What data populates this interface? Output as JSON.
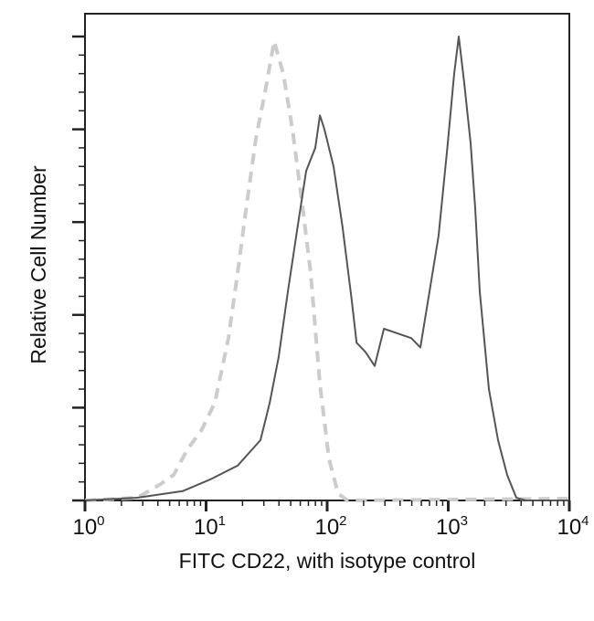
{
  "chart_data": {
    "type": "line",
    "title": "",
    "xlabel": "FITC CD22, with isotype control",
    "ylabel": "Relative Cell Number",
    "x_scale": "log",
    "xlim": [
      1,
      10000
    ],
    "ylim": [
      0,
      100
    ],
    "x_ticks": [
      {
        "base": "10",
        "exp": "0",
        "value": 1
      },
      {
        "base": "10",
        "exp": "1",
        "value": 10
      },
      {
        "base": "10",
        "exp": "2",
        "value": 100
      },
      {
        "base": "10",
        "exp": "3",
        "value": 1000
      },
      {
        "base": "10",
        "exp": "4",
        "value": 10000
      }
    ],
    "y_major_ticks": [
      0,
      20,
      40,
      60,
      80,
      100
    ],
    "grid": false,
    "legend": "none",
    "series": [
      {
        "style": "solid",
        "color": "#555555",
        "x": [
          1,
          2.7,
          6.4,
          10.8,
          18.2,
          28.1,
          33.5,
          39.8,
          47.4,
          56.3,
          67.0,
          79.8,
          87.1,
          94.9,
          113,
          134,
          160,
          175,
          207,
          247,
          294,
          381,
          494,
          589,
          700,
          832,
          991,
          1119,
          1222,
          1356,
          1531,
          1670,
          1820,
          2168,
          2578,
          3069,
          3648,
          4343,
          10000
        ],
        "y": [
          0,
          0.6,
          2,
          4.5,
          7.5,
          13,
          21,
          31,
          45,
          58,
          71,
          76,
          83,
          80,
          72,
          59,
          43,
          34,
          32,
          29,
          37,
          36,
          35,
          33,
          45,
          57,
          77,
          92,
          100,
          90,
          77,
          63,
          45,
          24,
          13,
          5.5,
          0.6,
          0,
          0
        ]
      },
      {
        "style": "dashed",
        "color": "#cccccc",
        "x": [
          1,
          2.7,
          4.2,
          5.4,
          7.0,
          9.1,
          11.8,
          15.3,
          18.2,
          21.7,
          25.8,
          30.7,
          36.5,
          43.4,
          51.7,
          61.5,
          73.1,
          87.1,
          103.5,
          123,
          147,
          10000
        ],
        "y": [
          0,
          0.6,
          3.5,
          5.5,
          11,
          15,
          21,
          35,
          49,
          64,
          78,
          88,
          99,
          92,
          80,
          65,
          49,
          25,
          9,
          1.5,
          0,
          0.4
        ]
      }
    ]
  }
}
